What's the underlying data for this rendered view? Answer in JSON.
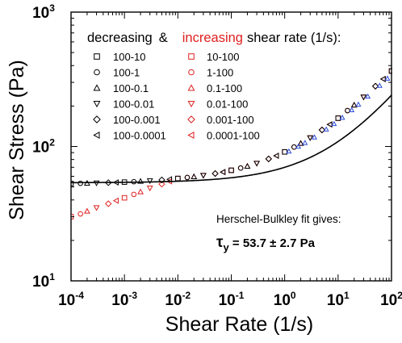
{
  "chart_data": {
    "type": "scatter",
    "xlabel": "Shear Rate (1/s)",
    "ylabel": "Shear Stress (Pa)",
    "x_scale": "log",
    "y_scale": "log",
    "xlim": [
      0.0001,
      100
    ],
    "ylim": [
      10,
      1000
    ],
    "x_tick_values": [
      0.0001,
      0.001,
      0.01,
      0.1,
      1,
      10,
      100
    ],
    "x_tick_labels": [
      {
        "base": "10",
        "exp": "-4"
      },
      {
        "base": "10",
        "exp": "-3"
      },
      {
        "base": "10",
        "exp": "-2"
      },
      {
        "base": "10",
        "exp": "-1"
      },
      {
        "base": "10",
        "exp": "0"
      },
      {
        "base": "10",
        "exp": "1"
      },
      {
        "base": "10",
        "exp": "2"
      }
    ],
    "y_tick_values": [
      10,
      100,
      1000
    ],
    "y_tick_labels": [
      {
        "base": "10",
        "exp": "1"
      },
      {
        "base": "10",
        "exp": "2"
      },
      {
        "base": "10",
        "exp": "3"
      }
    ],
    "legend": {
      "placement": "top-left",
      "header_left": "decreasing",
      "header_amp": "&",
      "header_mid": "increasing",
      "header_right": "shear rate (1/s):",
      "decreasing": [
        {
          "label": "100-10",
          "marker": "square"
        },
        {
          "label": "100-1",
          "marker": "circle"
        },
        {
          "label": "100-0.1",
          "marker": "triangle-up"
        },
        {
          "label": "100-0.01",
          "marker": "triangle-down"
        },
        {
          "label": "100-0.001",
          "marker": "diamond"
        },
        {
          "label": "100-0.0001",
          "marker": "triangle-left"
        }
      ],
      "increasing": [
        {
          "label": "10-100",
          "marker": "square"
        },
        {
          "label": "1-100",
          "marker": "circle"
        },
        {
          "label": "0.1-100",
          "marker": "triangle-up"
        },
        {
          "label": "0.01-100",
          "marker": "triangle-down"
        },
        {
          "label": "0.001-100",
          "marker": "diamond"
        },
        {
          "label": "0.0001-100",
          "marker": "triangle-left"
        }
      ]
    },
    "annotation": {
      "line1": "Herschel-Bulkley fit gives:",
      "tau": "τ",
      "sub": "y",
      "value": " = 53.7 ± 2.7 Pa"
    },
    "fit": {
      "tau_y": 53.7,
      "K": 16.3,
      "n": 0.53
    },
    "series": [
      {
        "name": "decreasing",
        "color": "#000000",
        "x": [
          0.0001,
          0.00015,
          0.0002,
          0.0003,
          0.0005,
          0.0007,
          0.001,
          0.0015,
          0.002,
          0.003,
          0.005,
          0.007,
          0.01,
          0.015,
          0.02,
          0.03,
          0.05,
          0.07,
          0.1,
          0.15,
          0.2,
          0.3,
          0.5,
          0.7,
          1,
          1.5,
          2,
          3,
          5,
          7,
          10,
          15,
          20,
          30,
          50,
          70,
          100
        ],
        "y": [
          53,
          53.2,
          53.3,
          53.5,
          53.8,
          54,
          54.3,
          54.7,
          55.1,
          55.6,
          56.4,
          57,
          57.8,
          58.8,
          59.6,
          60.9,
          62.9,
          64.5,
          66.5,
          69.1,
          71.3,
          74.9,
          80.8,
          85.3,
          91.1,
          99,
          105.5,
          116,
          132.8,
          145.8,
          162.4,
          185,
          203.5,
          233.3,
          281,
          317.8,
          364.5
        ]
      },
      {
        "name": "increasing",
        "color": "#e02020",
        "x": [
          0.0001,
          0.00015,
          0.0002,
          0.0003,
          0.0005,
          0.0007,
          0.001,
          0.0015,
          0.002,
          0.003,
          0.005,
          0.007,
          0.01,
          0.015,
          0.02,
          0.03,
          0.05,
          0.07,
          0.1,
          0.15,
          0.2,
          0.3,
          0.5,
          0.7,
          1,
          1.5,
          2,
          3,
          5,
          7,
          10,
          15,
          20,
          30,
          50,
          70,
          100
        ],
        "y": [
          30,
          31.5,
          33,
          35,
          37.5,
          39.5,
          41.5,
          44,
          46,
          49,
          52.5,
          55,
          57.8,
          58.8,
          59.6,
          60.9,
          62.9,
          64.5,
          66.5,
          69.1,
          71.3,
          74.9,
          80.8,
          85.3,
          91.1,
          99,
          105.5,
          116,
          132.8,
          145.8,
          162.4,
          185,
          203.5,
          233.3,
          281,
          317.8,
          364.5
        ]
      }
    ]
  }
}
